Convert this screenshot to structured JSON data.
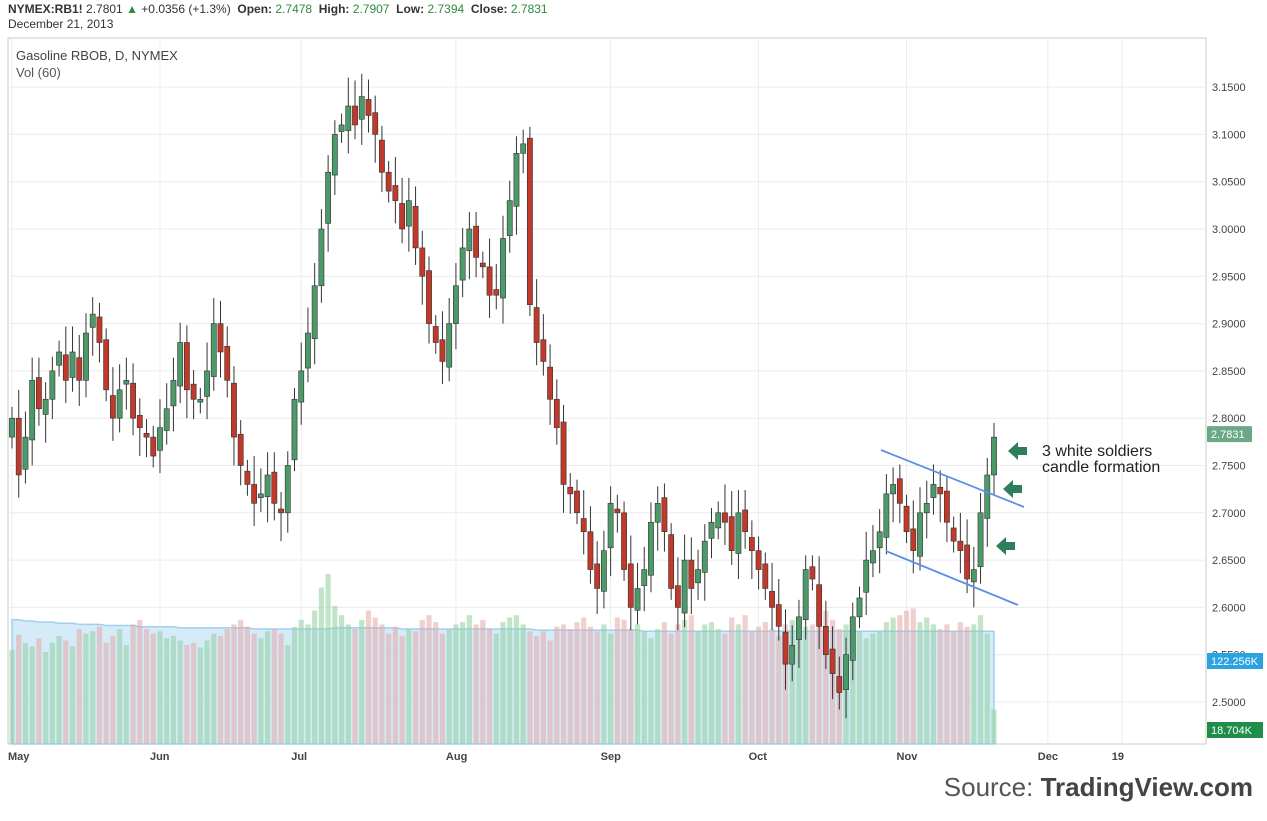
{
  "header": {
    "symbol": "NYMEX:RB1!",
    "last": "2.7801",
    "change": "+0.0356 (+1.3%)",
    "open_label": "Open:",
    "open": "2.7478",
    "high_label": "High:",
    "high": "2.7907",
    "low_label": "Low:",
    "low": "2.7394",
    "close_label": "Close:",
    "close": "2.7831",
    "date": "December 21, 2013"
  },
  "legend": {
    "title": "Gasoline RBOB, D, NYMEX",
    "volume": "Vol (60)"
  },
  "annotation": {
    "line1": "3 white soldiers",
    "line2": "candle formation"
  },
  "source": {
    "prefix": "Source: ",
    "brand": "TradingView.com"
  },
  "colors": {
    "up": "#4c9a6a",
    "down": "#c0392b",
    "volume_avg_fill": "#cfe8f7",
    "trend": "#5b8ee6",
    "arrow": "#2e7d5b",
    "price_tag": "#6aa886",
    "vol_tag_top": "#2aa3e0",
    "vol_tag_bottom": "#1e8f4a"
  },
  "chart_data": {
    "type": "candlestick",
    "y_ticks": [
      "3.1500",
      "3.1000",
      "3.0500",
      "3.0000",
      "2.9500",
      "2.9000",
      "2.8500",
      "2.8000",
      "2.7500",
      "2.7000",
      "2.6500",
      "2.6000",
      "2.5500",
      "2.5000"
    ],
    "ylim": [
      2.47,
      3.2
    ],
    "x_ticks": [
      "May",
      "Jun",
      "Jul",
      "Aug",
      "Sep",
      "Oct",
      "Nov",
      "Dec",
      "19"
    ],
    "price_tag": "2.7831",
    "volume_tags": [
      "122.256K",
      "18.704K"
    ],
    "closes": [
      2.8,
      2.74,
      2.78,
      2.84,
      2.81,
      2.82,
      2.85,
      2.87,
      2.84,
      2.87,
      2.84,
      2.89,
      2.91,
      2.88,
      2.83,
      2.8,
      2.83,
      2.84,
      2.8,
      2.79,
      2.78,
      2.76,
      2.79,
      2.81,
      2.84,
      2.88,
      2.83,
      2.82,
      2.82,
      2.85,
      2.9,
      2.87,
      2.84,
      2.78,
      2.75,
      2.73,
      2.71,
      2.72,
      2.74,
      2.71,
      2.7,
      2.75,
      2.82,
      2.85,
      2.89,
      2.94,
      3.0,
      3.06,
      3.1,
      3.11,
      3.13,
      3.11,
      3.14,
      3.12,
      3.1,
      3.06,
      3.04,
      3.03,
      3.0,
      3.03,
      2.98,
      2.95,
      2.9,
      2.88,
      2.86,
      2.9,
      2.94,
      2.98,
      3.0,
      2.97,
      2.96,
      2.93,
      2.93,
      2.99,
      3.03,
      3.08,
      3.09,
      2.92,
      2.88,
      2.86,
      2.82,
      2.79,
      2.73,
      2.72,
      2.7,
      2.68,
      2.64,
      2.62,
      2.66,
      2.71,
      2.7,
      2.64,
      2.6,
      2.62,
      2.64,
      2.69,
      2.71,
      2.68,
      2.62,
      2.6,
      2.65,
      2.62,
      2.64,
      2.67,
      2.69,
      2.7,
      2.69,
      2.66,
      2.7,
      2.68,
      2.66,
      2.64,
      2.62,
      2.6,
      2.58,
      2.54,
      2.56,
      2.59,
      2.64,
      2.63,
      2.58,
      2.55,
      2.53,
      2.51,
      2.55,
      2.59,
      2.61,
      2.65,
      2.66,
      2.68,
      2.72,
      2.73,
      2.71,
      2.68,
      2.66,
      2.7,
      2.71,
      2.73,
      2.72,
      2.69,
      2.67,
      2.66,
      2.63,
      2.64,
      2.7,
      2.74,
      2.78
    ],
    "volumes": [
      82,
      95,
      88,
      85,
      92,
      80,
      88,
      94,
      90,
      85,
      100,
      96,
      98,
      102,
      88,
      94,
      100,
      86,
      104,
      108,
      100,
      96,
      98,
      92,
      94,
      90,
      86,
      88,
      84,
      90,
      96,
      94,
      100,
      104,
      108,
      102,
      96,
      92,
      98,
      100,
      96,
      86,
      102,
      108,
      104,
      116,
      136,
      148,
      120,
      112,
      104,
      100,
      108,
      116,
      110,
      104,
      96,
      102,
      94,
      100,
      98,
      108,
      112,
      106,
      96,
      100,
      104,
      106,
      112,
      104,
      108,
      100,
      96,
      106,
      110,
      112,
      104,
      98,
      94,
      98,
      90,
      102,
      104,
      100,
      106,
      110,
      102,
      98,
      104,
      96,
      110,
      108,
      100,
      104,
      98,
      92,
      100,
      106,
      96,
      104,
      108,
      112,
      98,
      104,
      106,
      100,
      96,
      110,
      104,
      112,
      98,
      102,
      106,
      100,
      94,
      104,
      108,
      98,
      102,
      104,
      110,
      116,
      108,
      100,
      104,
      102,
      98,
      92,
      96,
      98,
      106,
      110,
      112,
      116,
      118,
      106,
      110,
      104,
      100,
      104,
      98,
      106,
      102,
      104,
      112,
      96,
      30
    ],
    "volume_avg": [
      108,
      108,
      107,
      107,
      106,
      106,
      106,
      105,
      105,
      105,
      104,
      104,
      104,
      104,
      103,
      103,
      103,
      103,
      103,
      102,
      102,
      102,
      102,
      102,
      102,
      101,
      101,
      101,
      101,
      101,
      101,
      101,
      101,
      101,
      101,
      101,
      100,
      100,
      100,
      100,
      100,
      100,
      100,
      100,
      100,
      100,
      100,
      100,
      101,
      101,
      101,
      101,
      101,
      101,
      101,
      101,
      101,
      101,
      100,
      100,
      100,
      100,
      100,
      100,
      100,
      100,
      100,
      100,
      100,
      100,
      100,
      100,
      100,
      100,
      100,
      100,
      100,
      100,
      99,
      99,
      99,
      99,
      99,
      99,
      99,
      99,
      99,
      99,
      99,
      99,
      99,
      99,
      99,
      99,
      98,
      98,
      98,
      98,
      98,
      98,
      98,
      98,
      98,
      98,
      98,
      98,
      98,
      98,
      98,
      98,
      98,
      98,
      98,
      98,
      98,
      98,
      98,
      98,
      98,
      98,
      98,
      98,
      98,
      98,
      98,
      98,
      98,
      98,
      98,
      98,
      98,
      98,
      98,
      98,
      98,
      98,
      98,
      98,
      98,
      98,
      98,
      98,
      98,
      98,
      98,
      98,
      98
    ]
  }
}
